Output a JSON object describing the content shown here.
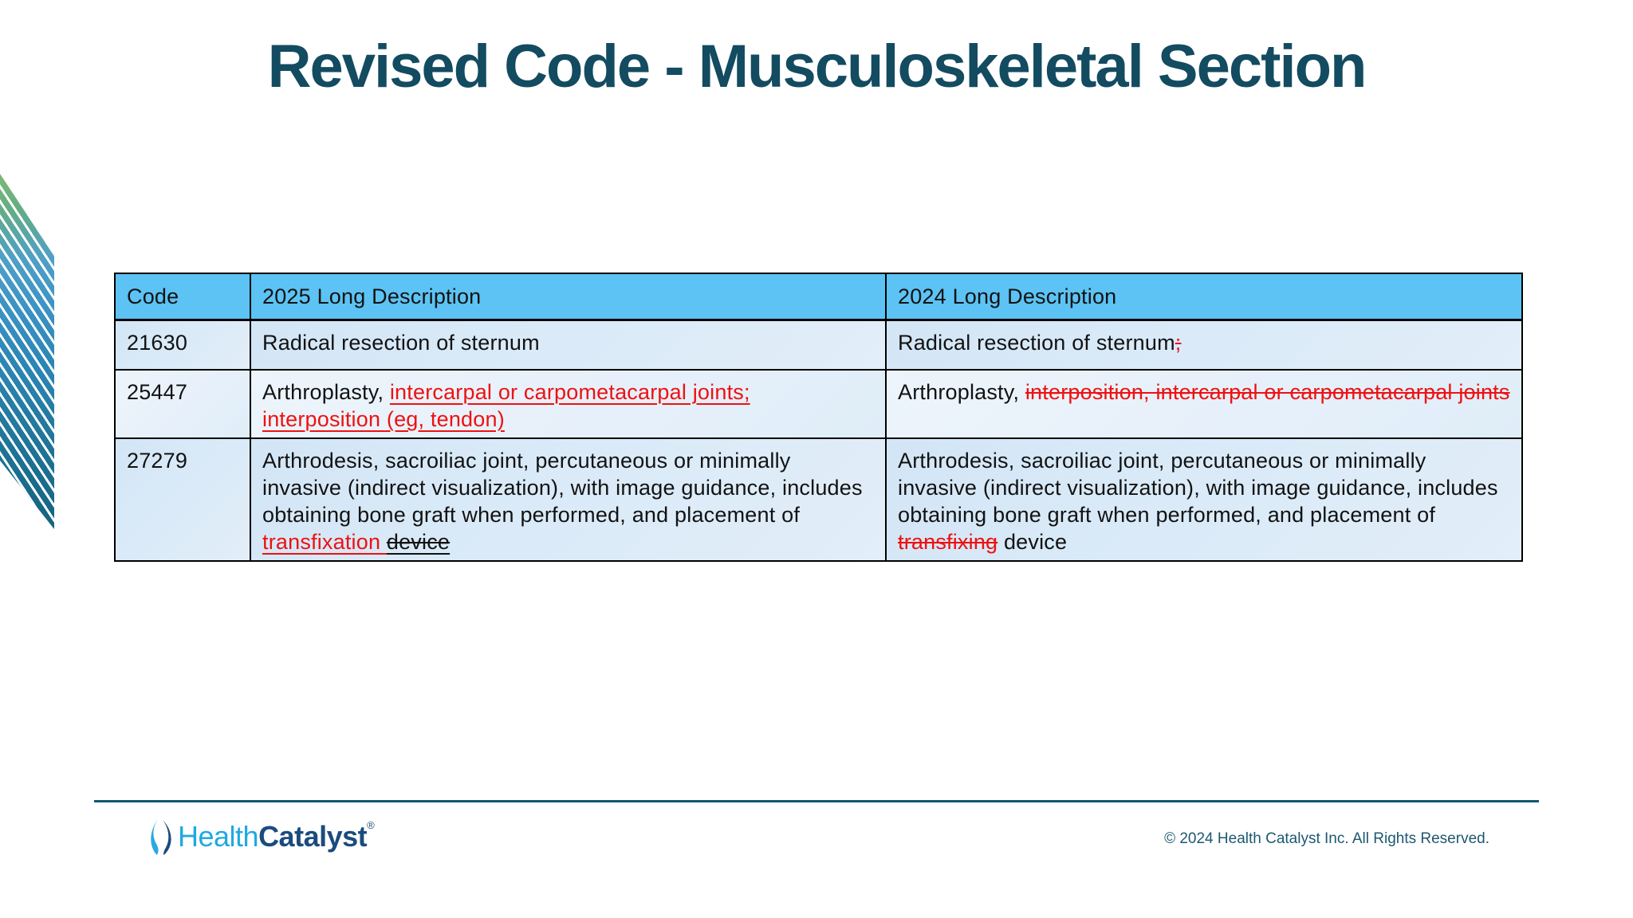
{
  "title": "Revised Code - Musculoskeletal Section",
  "table": {
    "headers": [
      "Code",
      "2025 Long Description",
      "2024 Long Description"
    ],
    "rows": [
      {
        "code": "21630",
        "desc_2025": [
          {
            "t": "Radical resection of sternum",
            "s": "normal"
          }
        ],
        "desc_2024": [
          {
            "t": "Radical resection of sternum",
            "s": "normal"
          },
          {
            "t": ";",
            "s": "removed"
          }
        ]
      },
      {
        "code": "25447",
        "desc_2025": [
          {
            "t": "Arthroplasty, ",
            "s": "normal"
          },
          {
            "t": "intercarpal or carpometacarpal joints; interposition (eg, tendon)",
            "s": "added"
          }
        ],
        "desc_2024": [
          {
            "t": "Arthroplasty, ",
            "s": "normal"
          },
          {
            "t": "interposition, intercarpal or carpometacarpal joints",
            "s": "removed"
          }
        ]
      },
      {
        "code": "27279",
        "desc_2025": [
          {
            "t": "Arthrodesis, sacroiliac joint, percutaneous or minimally invasive (indirect visualization), with image guidance, includes obtaining bone graft when performed, and placement of ",
            "s": "normal"
          },
          {
            "t": "transfixation ",
            "s": "added"
          },
          {
            "t": "device",
            "s": "removed-black-underlined"
          }
        ],
        "desc_2024": [
          {
            "t": "Arthrodesis, sacroiliac joint, percutaneous or minimally invasive (indirect visualization), with image guidance, includes obtaining bone graft when performed, and placement of ",
            "s": "normal"
          },
          {
            "t": "transfixing",
            "s": "removed"
          },
          {
            "t": " device",
            "s": "normal"
          }
        ]
      }
    ]
  },
  "footer": {
    "logo": {
      "brand_first": "Health",
      "brand_second": "Catalyst",
      "reg": "®"
    },
    "copyright": "© 2024 Health Catalyst Inc. All Rights Reserved."
  },
  "colors": {
    "title_teal": "#134B61",
    "table_header_blue": "#5CC3F4",
    "row_band_blue": "#D8E9F7",
    "row_band_light": "#EAF3FB",
    "revision_red": "#EE1111",
    "footer_line_teal": "#0E5772",
    "logo_health_blue": "#1FA9E2",
    "logo_catalyst_navy": "#1B4B7E",
    "stripe_green": "#7DBA72",
    "stripe_teal": "#15647F"
  }
}
